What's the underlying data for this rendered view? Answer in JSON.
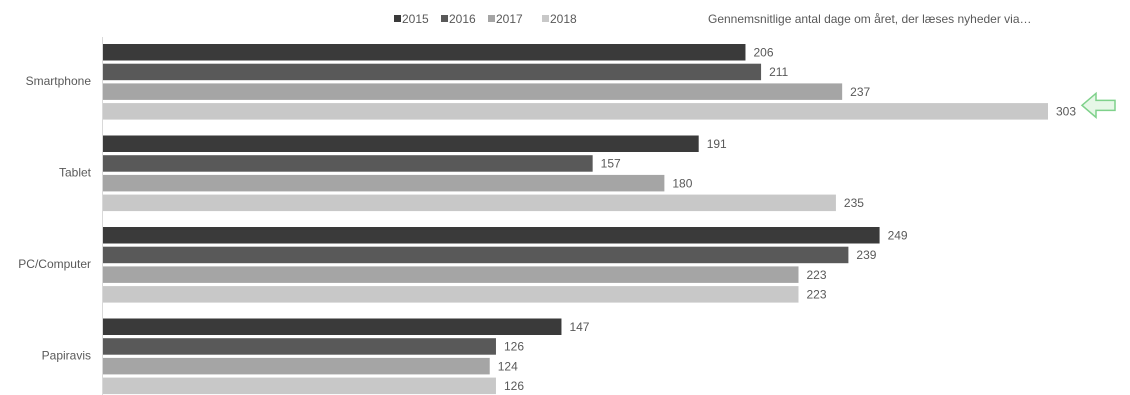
{
  "chart_data": {
    "type": "bar",
    "orientation": "horizontal",
    "title": "Gennemsnitlige antal dage om året, der læses nyheder via…",
    "categories": [
      "Smartphone",
      "Tablet",
      "PC/Computer",
      "Papiravis"
    ],
    "series": [
      {
        "name": "2015",
        "color": "#3a3a3a",
        "values": [
          206,
          191,
          249,
          147
        ]
      },
      {
        "name": "2016",
        "color": "#595959",
        "values": [
          211,
          157,
          239,
          126
        ]
      },
      {
        "name": "2017",
        "color": "#a5a5a5",
        "values": [
          237,
          180,
          223,
          124
        ]
      },
      {
        "name": "2018",
        "color": "#c8c8c8",
        "values": [
          303,
          235,
          223,
          126
        ]
      }
    ],
    "xlim": [
      0,
      310
    ],
    "grid": false,
    "legend_position": "top",
    "annotation": {
      "type": "arrow",
      "target_category": "Smartphone",
      "target_series": "2018",
      "color": "#7fd18b"
    }
  }
}
